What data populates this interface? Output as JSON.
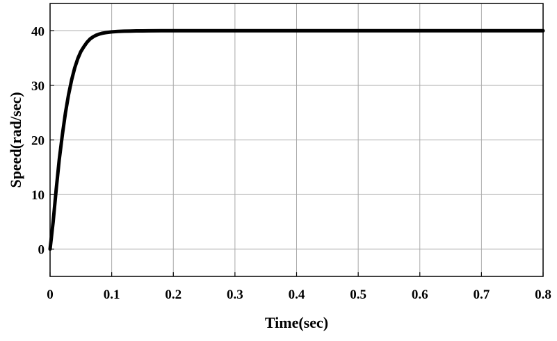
{
  "chart_data": {
    "type": "line",
    "xlabel": "Time(sec)",
    "ylabel": "Speed(rad/sec)",
    "xlim": [
      0,
      0.8
    ],
    "ylim": [
      -5,
      45
    ],
    "xticks": [
      0,
      0.1,
      0.2,
      0.3,
      0.4,
      0.5,
      0.6,
      0.7,
      0.8
    ],
    "xtick_labels": [
      "0",
      "0.1",
      "0.2",
      "0.3",
      "0.4",
      "0.5",
      "0.6",
      "0.7",
      "0.8"
    ],
    "yticks": [
      0,
      10,
      20,
      30,
      40
    ],
    "ytick_labels": [
      "0",
      "10",
      "20",
      "30",
      "40"
    ],
    "grid": true,
    "series": [
      {
        "color": "#000000",
        "x": [
          0,
          0.005,
          0.01,
          0.015,
          0.02,
          0.025,
          0.03,
          0.035,
          0.04,
          0.045,
          0.05,
          0.055,
          0.06,
          0.065,
          0.07,
          0.075,
          0.08,
          0.085,
          0.09,
          0.1,
          0.11,
          0.12,
          0.13,
          0.14,
          0.15,
          0.16,
          0.18,
          0.2,
          0.25,
          0.3,
          0.4,
          0.5,
          0.6,
          0.7,
          0.8
        ],
        "y": [
          0,
          5.0,
          11.0,
          16.5,
          21.0,
          25.0,
          28.3,
          31.0,
          33.2,
          34.9,
          36.2,
          37.1,
          37.9,
          38.5,
          38.9,
          39.2,
          39.4,
          39.55,
          39.65,
          39.8,
          39.88,
          39.92,
          39.95,
          39.97,
          39.98,
          39.99,
          40,
          40,
          40,
          40,
          40,
          40,
          40,
          40,
          40
        ]
      }
    ]
  }
}
